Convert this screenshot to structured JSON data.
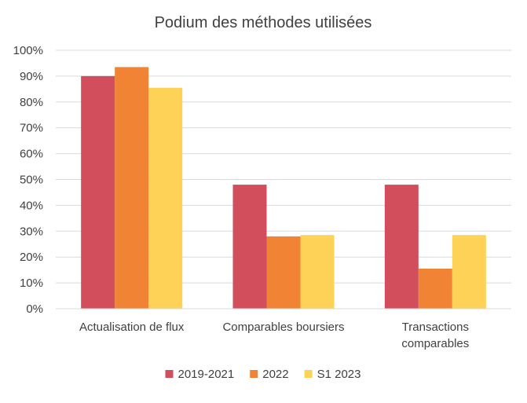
{
  "chart_data": {
    "type": "bar",
    "title": "Podium des méthodes utilisées",
    "categories": [
      [
        "Actualisation de flux"
      ],
      [
        "Comparables boursiers"
      ],
      [
        "Transactions",
        "comparables"
      ]
    ],
    "series": [
      {
        "name": "2019-2021",
        "values": [
          90,
          48,
          48
        ],
        "color": "#d24e5c"
      },
      {
        "name": "2022",
        "values": [
          93.5,
          28,
          15.5
        ],
        "color": "#f08434"
      },
      {
        "name": "S1 2023",
        "values": [
          85.5,
          28.5,
          28.5
        ],
        "color": "#fed256"
      }
    ],
    "ylim": [
      0,
      100
    ],
    "yticks": [
      "0%",
      "10%",
      "20%",
      "30%",
      "40%",
      "50%",
      "60%",
      "70%",
      "80%",
      "90%",
      "100%"
    ],
    "grid": true,
    "legend_position": "bottom",
    "xlabel": "",
    "ylabel": ""
  }
}
